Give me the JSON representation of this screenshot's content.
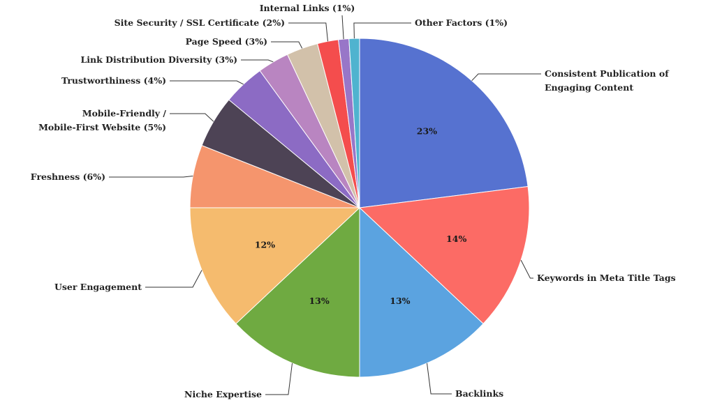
{
  "chart_data": {
    "type": "pie",
    "title": "",
    "slices": [
      {
        "label": "Consistent Publication of Engaging Content",
        "label_lines": [
          "Consistent Publication of",
          "Engaging Content"
        ],
        "value": 23,
        "value_label": "23%",
        "color": "#5672D0"
      },
      {
        "label": "Keywords in Meta Title Tags",
        "label_lines": [
          "Keywords in Meta Title Tags"
        ],
        "value": 14,
        "value_label": "14%",
        "color": "#FC6B65"
      },
      {
        "label": "Backlinks",
        "label_lines": [
          "Backlinks"
        ],
        "value": 13,
        "value_label": "13%",
        "color": "#5BA3E0"
      },
      {
        "label": "Niche Expertise",
        "label_lines": [
          "Niche Expertise"
        ],
        "value": 13,
        "value_label": "13%",
        "color": "#6FAA41"
      },
      {
        "label": "User Engagement",
        "label_lines": [
          "User Engagement"
        ],
        "value": 12,
        "value_label": "12%",
        "color": "#F5BB6E"
      },
      {
        "label": "Freshness (6%)",
        "label_lines": [
          "Freshness (6%)"
        ],
        "value": 6,
        "color": "#F5956D"
      },
      {
        "label": "Mobile-Friendly / Mobile-First Website (5%)",
        "label_lines": [
          "Mobile-Friendly /",
          "Mobile-First Website (5%)"
        ],
        "value": 5,
        "color": "#4D4355"
      },
      {
        "label": "Trustworthiness (4%)",
        "label_lines": [
          "Trustworthiness (4%)"
        ],
        "value": 4,
        "color": "#8C6BC4"
      },
      {
        "label": "Link Distribution Diversity (3%)",
        "label_lines": [
          "Link Distribution Diversity (3%)"
        ],
        "value": 3,
        "color": "#B985C1"
      },
      {
        "label": "Page Speed (3%)",
        "label_lines": [
          "Page Speed (3%)"
        ],
        "value": 3,
        "color": "#D2C1AA"
      },
      {
        "label": "Site Security / SSL Certificate (2%)",
        "label_lines": [
          "Site Security / SSL Certificate (2%)"
        ],
        "value": 2,
        "color": "#F44D4D"
      },
      {
        "label": "Internal Links (1%)",
        "label_lines": [
          "Internal Links (1%)"
        ],
        "value": 1,
        "color": "#9876C8"
      },
      {
        "label": "Other Factors (1%)",
        "label_lines": [
          "Other Factors (1%)"
        ],
        "value": 1,
        "color": "#4FB3CF"
      }
    ]
  }
}
